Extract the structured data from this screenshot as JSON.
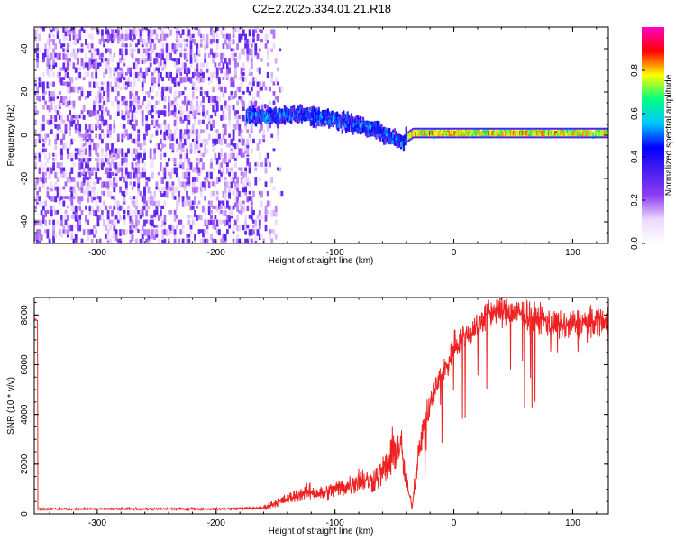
{
  "title": "C2E2.2025.334.01.21.R18",
  "chart_data": [
    {
      "type": "heatmap",
      "name": "spectrogram",
      "xlabel": "Height of straight line (km)",
      "ylabel": "Frequency (Hz)",
      "xlim": [
        -353,
        130
      ],
      "ylim": [
        -50,
        50
      ],
      "xticks": [
        -300,
        -200,
        -100,
        0,
        100
      ],
      "yticks": [
        -40,
        -20,
        0,
        20,
        40
      ],
      "colorbar": {
        "label": "Normalized spectral amplitude",
        "range": [
          0,
          1
        ],
        "ticks": [
          0.0,
          0.2,
          0.4,
          0.6,
          0.8
        ],
        "tick_labels": [
          "0.0",
          "0.2",
          "0.4",
          "0.6",
          "0.8"
        ],
        "colormap": [
          "#ffffff",
          "#ecd8ff",
          "#8f3cf0",
          "#4a1ef0",
          "#0000ff",
          "#00c8ff",
          "#00ff80",
          "#ffff00",
          "#ff0000",
          "#ff00c8"
        ]
      },
      "features": {
        "noise_region_x": [
          -353,
          -175
        ],
        "noise_fade_x": [
          -175,
          -145
        ],
        "signal_track": {
          "x": [
            -175,
            -150,
            -130,
            -110,
            -90,
            -70,
            -55,
            -45,
            -35,
            -20,
            0,
            50,
            100,
            130
          ],
          "freq": [
            9,
            9,
            10,
            8,
            6,
            3,
            0,
            -3,
            1,
            1,
            1,
            1,
            1,
            1
          ]
        }
      }
    },
    {
      "type": "line",
      "name": "snr",
      "xlabel": "Height of straight line (km)",
      "ylabel": "SNR (10 * v/v)",
      "xlim": [
        -353,
        130
      ],
      "ylim": [
        0,
        8700
      ],
      "xticks": [
        -300,
        -200,
        -100,
        0,
        100
      ],
      "yticks": [
        0,
        2000,
        4000,
        6000,
        8000
      ],
      "series": [
        {
          "color": "#ee2222",
          "x": [
            -350,
            -300,
            -250,
            -200,
            -175,
            -160,
            -150,
            -140,
            -130,
            -120,
            -110,
            -100,
            -90,
            -80,
            -70,
            -60,
            -55,
            -50,
            -45,
            -40,
            -35,
            -30,
            -25,
            -20,
            -15,
            -10,
            -5,
            0,
            5,
            10,
            20,
            30,
            40,
            50,
            60,
            70,
            80,
            90,
            100,
            110,
            120,
            130
          ],
          "values": [
            200,
            200,
            200,
            200,
            220,
            250,
            450,
            600,
            800,
            900,
            800,
            1000,
            1100,
            1400,
            1300,
            1700,
            2000,
            2600,
            2800,
            1200,
            300,
            2500,
            3600,
            4300,
            5100,
            5600,
            6000,
            6800,
            7000,
            7100,
            7600,
            8100,
            8200,
            8100,
            8000,
            7900,
            7700,
            7500,
            7600,
            7700,
            7800,
            7800
          ]
        }
      ]
    }
  ]
}
